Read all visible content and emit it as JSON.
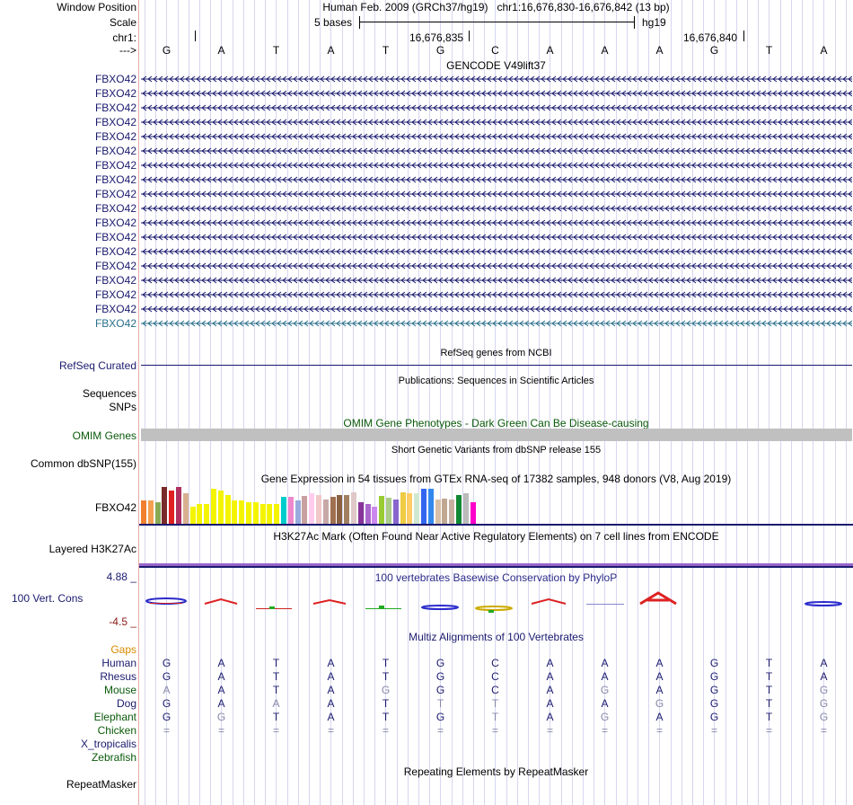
{
  "header": {
    "window_position_label": "Window Position",
    "scale_label": "Scale",
    "chrom_label": "chr1:",
    "arrow_label": "--->",
    "assembly_text": "Human Feb. 2009 (GRCh37/hg19)",
    "position_text": "chr1:16,676,830-16,676,842 (13 bp)",
    "scale_text": "5 bases",
    "db_label": "hg19",
    "tick_1": "16,676,835",
    "tick_2": "16,676,840"
  },
  "bases": [
    "G",
    "A",
    "T",
    "A",
    "T",
    "G",
    "C",
    "A",
    "A",
    "A",
    "G",
    "T",
    "A"
  ],
  "gencode": {
    "title": "GENCODE V49lift37",
    "genes": [
      "FBXO42",
      "FBXO42",
      "FBXO42",
      "FBXO42",
      "FBXO42",
      "FBXO42",
      "FBXO42",
      "FBXO42",
      "FBXO42",
      "FBXO42",
      "FBXO42",
      "FBXO42",
      "FBXO42",
      "FBXO42",
      "FBXO42",
      "FBXO42",
      "FBXO42",
      "FBXO42"
    ],
    "highlight_index": 17
  },
  "refseq": {
    "title": "RefSeq genes from NCBI",
    "label": "RefSeq Curated"
  },
  "publications": {
    "title": "Publications: Sequences in Scientific Articles",
    "label_1": "Sequences",
    "label_2": "SNPs"
  },
  "omim": {
    "title": "OMIM Gene Phenotypes - Dark Green Can Be Disease-causing",
    "label": "OMIM Genes"
  },
  "dbsnp": {
    "title": "Short Genetic Variants from dbSNP release 155",
    "label": "Common dbSNP(155)"
  },
  "gtex": {
    "title": "Gene Expression in 54 tissues from GTEx RNA-seq of 17382 samples, 948 donors (V8, Aug 2019)",
    "label": "FBXO42"
  },
  "h3k27ac": {
    "title": "H3K27Ac Mark (Often Found Near Active Regulatory Elements) on 7 cell lines from ENCODE",
    "label": "Layered H3K27Ac"
  },
  "phylop": {
    "title": "100 vertebrates Basewise Conservation by PhyloP",
    "label": "100 Vert. Cons",
    "max": "4.88 _",
    "min": "-4.5 _"
  },
  "multiz": {
    "title": "Multiz Alignments of 100 Vertebrates",
    "gaps_label": "Gaps",
    "species": [
      {
        "name": "Human",
        "bases": [
          "G",
          "A",
          "T",
          "A",
          "T",
          "G",
          "C",
          "A",
          "A",
          "A",
          "G",
          "T",
          "A"
        ],
        "dim": []
      },
      {
        "name": "Rhesus",
        "bases": [
          "G",
          "A",
          "T",
          "A",
          "T",
          "G",
          "C",
          "A",
          "A",
          "A",
          "G",
          "T",
          "A"
        ],
        "dim": []
      },
      {
        "name": "Mouse",
        "bases": [
          "A",
          "A",
          "T",
          "A",
          "G",
          "G",
          "C",
          "A",
          "G",
          "A",
          "G",
          "T",
          "G"
        ],
        "dim": [
          0,
          4,
          8,
          12
        ]
      },
      {
        "name": "Dog",
        "bases": [
          "G",
          "A",
          "A",
          "A",
          "T",
          "T",
          "T",
          "A",
          "A",
          "G",
          "G",
          "T",
          "G"
        ],
        "dim": [
          2,
          5,
          6,
          9,
          12
        ]
      },
      {
        "name": "Elephant",
        "bases": [
          "G",
          "G",
          "T",
          "A",
          "T",
          "G",
          "T",
          "A",
          "G",
          "A",
          "G",
          "T",
          "G"
        ],
        "dim": [
          1,
          6,
          8,
          12
        ]
      },
      {
        "name": "Chicken",
        "bases": [
          "=",
          "=",
          "=",
          "=",
          "=",
          "=",
          "=",
          "=",
          "=",
          "=",
          "=",
          "=",
          "="
        ],
        "dim": []
      },
      {
        "name": "X_tropicalis",
        "bases": [],
        "dim": []
      },
      {
        "name": "Zebrafish",
        "bases": [],
        "dim": []
      }
    ]
  },
  "repeatmasker": {
    "title": "Repeating Elements by RepeatMasker",
    "label": "RepeatMasker"
  },
  "colors": {
    "navy": "#1a1a6e",
    "green": "#0a5a0a",
    "teal": "#2a6f8a",
    "omim_gray": "#c0c0c0",
    "h3k27ac_purple": "#9966cc"
  }
}
